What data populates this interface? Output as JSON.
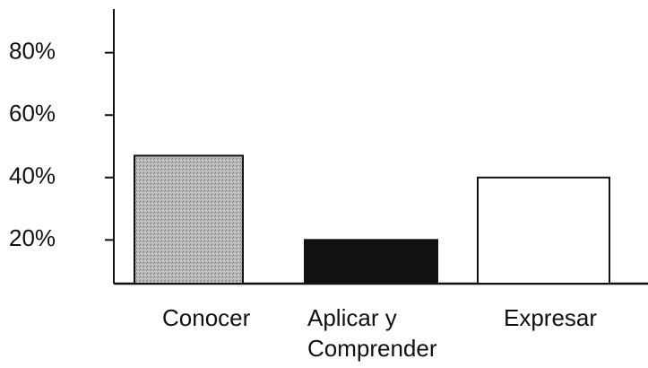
{
  "chart_data": {
    "type": "bar",
    "categories": [
      "Conocer",
      "Aplicar y Comprender",
      "Expresar"
    ],
    "values": [
      47,
      20,
      40
    ],
    "colors": [
      "#b0b0b0",
      "#111111",
      "#ffffff"
    ],
    "ylim": [
      6,
      94
    ],
    "yticks": [
      {
        "value": 20,
        "label": "20%"
      },
      {
        "value": 40,
        "label": "40%"
      },
      {
        "value": 60,
        "label": "60%"
      },
      {
        "value": 80,
        "label": "80%"
      }
    ],
    "grid": false
  }
}
